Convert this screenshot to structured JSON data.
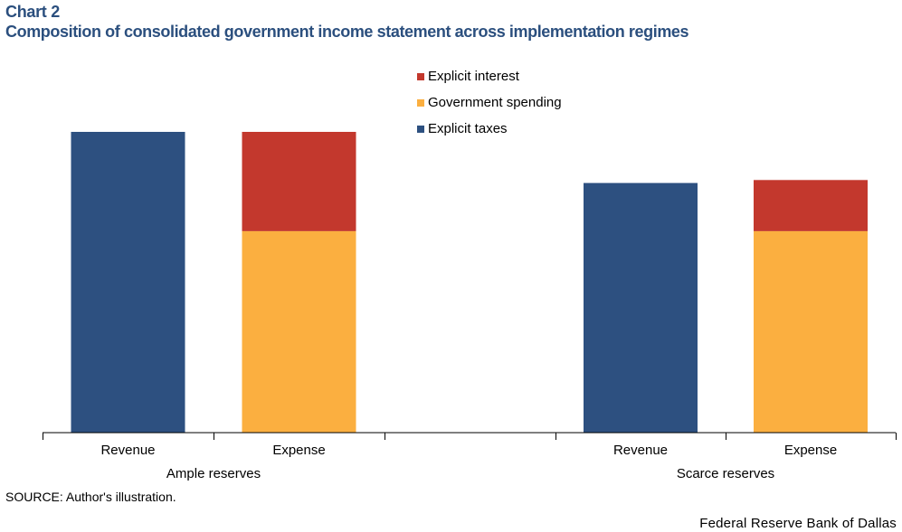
{
  "header": {
    "chart_label": "Chart 2",
    "title": "Composition of consolidated government income statement across implementation regimes"
  },
  "chart_data": {
    "type": "bar",
    "stacked": true,
    "y_axis_shown": false,
    "grid": false,
    "legend_position": "top-center",
    "groups": [
      {
        "label": "Ample reserves",
        "categories": [
          "Revenue",
          "Expense"
        ]
      },
      {
        "label": "Scarce reserves",
        "categories": [
          "Revenue",
          "Expense"
        ]
      }
    ],
    "categories": [
      "Revenue",
      "Expense",
      "Revenue",
      "Expense"
    ],
    "series": [
      {
        "name": "Explicit taxes",
        "color": "#2d5080",
        "values": [
          100,
          0,
          83,
          0
        ]
      },
      {
        "name": "Government spending",
        "color": "#fbaf40",
        "values": [
          0,
          67,
          0,
          67
        ]
      },
      {
        "name": "Explicit interest",
        "color": "#c3382d",
        "values": [
          0,
          33,
          0,
          17
        ]
      }
    ],
    "legend_order": [
      "Explicit interest",
      "Government spending",
      "Explicit taxes"
    ],
    "ylim": [
      0,
      100
    ]
  },
  "footer": {
    "source": "SOURCE: Author's illustration.",
    "credit": "Federal Reserve Bank of Dallas"
  }
}
